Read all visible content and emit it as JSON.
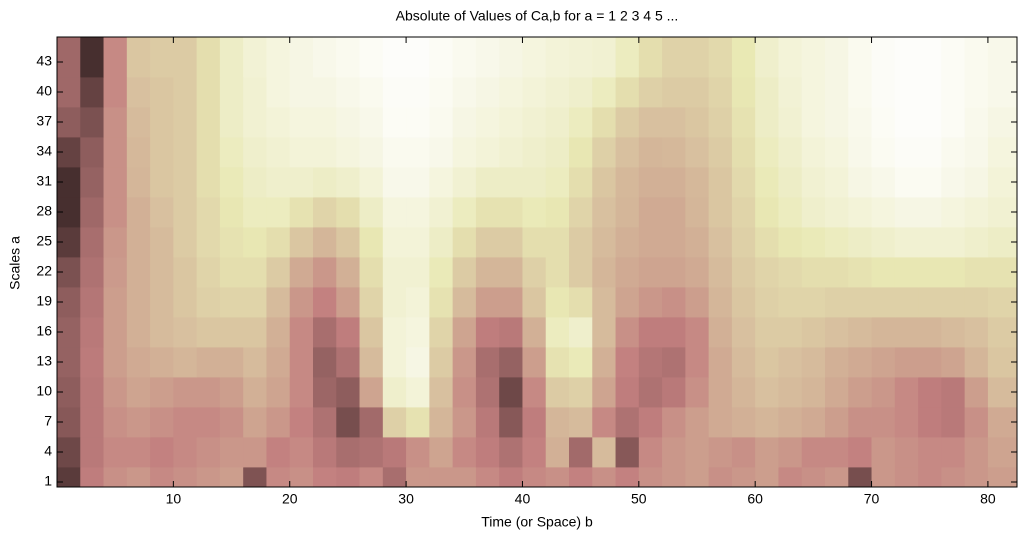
{
  "chart_data": {
    "type": "heatmap",
    "title": "Absolute of Values of Ca,b for a =  1 2 3 4 5 ...",
    "x_label": "Time (or Space) b",
    "y_label": "Scales a",
    "colormap": "pink",
    "clim": [
      0,
      100
    ],
    "xlim": [
      0,
      82.5
    ],
    "ylim": [
      0.5,
      45.5
    ],
    "xticks": [
      10,
      20,
      30,
      40,
      50,
      60,
      70,
      80
    ],
    "yticks": [
      1,
      4,
      7,
      10,
      13,
      16,
      19,
      22,
      25,
      28,
      31,
      34,
      37,
      40,
      43
    ],
    "x": [
      1,
      3,
      5,
      7,
      9,
      11,
      13,
      15,
      17,
      19,
      21,
      23,
      25,
      27,
      29,
      31,
      33,
      35,
      37,
      39,
      41,
      43,
      45,
      47,
      49,
      51,
      53,
      55,
      57,
      59,
      61,
      63,
      65,
      67,
      69,
      71,
      73,
      75,
      77,
      79,
      81
    ],
    "y": [
      1,
      4,
      7,
      10,
      13,
      16,
      19,
      22,
      25,
      28,
      31,
      34,
      37,
      40,
      43
    ],
    "values": [
      [
        8,
        36,
        42,
        44,
        40,
        42,
        44,
        46,
        16,
        40,
        42,
        38,
        36,
        40,
        28,
        44,
        44,
        44,
        40,
        36,
        40,
        42,
        38,
        42,
        38,
        42,
        44,
        46,
        42,
        44,
        46,
        40,
        42,
        44,
        14,
        44,
        42,
        40,
        42,
        44,
        46
      ],
      [
        12,
        34,
        40,
        40,
        38,
        40,
        42,
        44,
        44,
        38,
        40,
        34,
        28,
        30,
        34,
        42,
        48,
        40,
        36,
        30,
        38,
        52,
        26,
        56,
        18,
        40,
        44,
        46,
        44,
        42,
        46,
        44,
        40,
        40,
        38,
        44,
        42,
        40,
        40,
        44,
        48
      ],
      [
        18,
        34,
        42,
        44,
        42,
        40,
        40,
        42,
        48,
        44,
        38,
        30,
        14,
        26,
        64,
        72,
        54,
        44,
        34,
        18,
        36,
        54,
        56,
        40,
        30,
        36,
        42,
        46,
        50,
        52,
        54,
        52,
        50,
        46,
        42,
        42,
        40,
        36,
        34,
        42,
        50
      ],
      [
        20,
        34,
        44,
        48,
        46,
        44,
        44,
        46,
        52,
        48,
        40,
        24,
        20,
        48,
        82,
        86,
        58,
        42,
        30,
        12,
        40,
        62,
        64,
        48,
        36,
        30,
        34,
        42,
        50,
        54,
        58,
        56,
        54,
        50,
        46,
        44,
        40,
        36,
        34,
        46,
        56
      ],
      [
        22,
        35,
        46,
        50,
        52,
        54,
        52,
        52,
        56,
        50,
        40,
        22,
        30,
        56,
        86,
        90,
        62,
        44,
        28,
        22,
        46,
        72,
        76,
        52,
        38,
        32,
        30,
        40,
        50,
        56,
        60,
        58,
        56,
        52,
        50,
        48,
        46,
        46,
        48,
        54,
        60
      ],
      [
        22,
        34,
        46,
        52,
        56,
        58,
        60,
        60,
        60,
        52,
        40,
        28,
        36,
        60,
        86,
        88,
        66,
        48,
        36,
        34,
        52,
        78,
        82,
        56,
        42,
        36,
        36,
        40,
        52,
        58,
        62,
        62,
        60,
        58,
        56,
        54,
        54,
        54,
        56,
        58,
        62
      ],
      [
        20,
        32,
        46,
        52,
        56,
        60,
        64,
        66,
        66,
        56,
        44,
        38,
        46,
        66,
        84,
        86,
        72,
        56,
        46,
        46,
        60,
        74,
        70,
        56,
        48,
        44,
        42,
        46,
        54,
        60,
        64,
        66,
        66,
        64,
        64,
        64,
        64,
        64,
        64,
        64,
        66
      ],
      [
        15,
        30,
        45,
        52,
        56,
        60,
        66,
        70,
        70,
        62,
        50,
        44,
        52,
        70,
        84,
        84,
        76,
        62,
        54,
        54,
        64,
        70,
        62,
        54,
        50,
        48,
        48,
        50,
        56,
        62,
        66,
        68,
        70,
        70,
        72,
        74,
        74,
        74,
        74,
        72,
        72
      ],
      [
        8,
        28,
        44,
        52,
        56,
        62,
        68,
        72,
        74,
        70,
        60,
        54,
        60,
        74,
        86,
        86,
        80,
        70,
        62,
        62,
        70,
        70,
        62,
        56,
        52,
        50,
        50,
        52,
        58,
        64,
        70,
        74,
        76,
        78,
        80,
        82,
        84,
        84,
        84,
        82,
        80
      ],
      [
        5,
        25,
        42,
        52,
        58,
        62,
        68,
        74,
        78,
        78,
        72,
        66,
        70,
        80,
        88,
        88,
        84,
        78,
        72,
        72,
        76,
        74,
        66,
        58,
        54,
        50,
        50,
        54,
        60,
        66,
        74,
        78,
        82,
        84,
        86,
        88,
        90,
        90,
        88,
        86,
        84
      ],
      [
        5,
        22,
        42,
        54,
        60,
        62,
        70,
        76,
        80,
        82,
        82,
        80,
        82,
        86,
        92,
        92,
        88,
        84,
        80,
        80,
        80,
        78,
        70,
        60,
        55,
        52,
        52,
        55,
        60,
        68,
        76,
        80,
        84,
        86,
        90,
        92,
        95,
        95,
        92,
        90,
        86
      ],
      [
        10,
        20,
        42,
        55,
        60,
        62,
        70,
        78,
        82,
        84,
        86,
        86,
        88,
        90,
        94,
        94,
        92,
        88,
        86,
        84,
        82,
        80,
        74,
        64,
        58,
        54,
        55,
        58,
        62,
        70,
        78,
        82,
        86,
        88,
        92,
        95,
        97,
        97,
        94,
        92,
        88
      ],
      [
        20,
        15,
        42,
        56,
        60,
        62,
        70,
        80,
        84,
        86,
        88,
        88,
        90,
        92,
        96,
        96,
        94,
        90,
        88,
        86,
        84,
        82,
        78,
        70,
        62,
        58,
        58,
        60,
        64,
        72,
        80,
        84,
        88,
        90,
        93,
        96,
        98,
        98,
        96,
        93,
        90
      ],
      [
        25,
        10,
        40,
        58,
        60,
        62,
        70,
        80,
        84,
        88,
        90,
        90,
        92,
        94,
        97,
        97,
        95,
        92,
        90,
        88,
        86,
        84,
        82,
        78,
        70,
        64,
        62,
        62,
        66,
        74,
        80,
        85,
        88,
        90,
        94,
        97,
        98,
        98,
        96,
        94,
        92
      ],
      [
        25,
        5,
        40,
        60,
        62,
        62,
        70,
        80,
        85,
        88,
        90,
        92,
        94,
        96,
        98,
        98,
        96,
        94,
        92,
        90,
        88,
        86,
        85,
        84,
        78,
        70,
        65,
        65,
        68,
        75,
        82,
        86,
        88,
        90,
        94,
        97,
        98,
        98,
        96,
        94,
        92
      ]
    ]
  }
}
